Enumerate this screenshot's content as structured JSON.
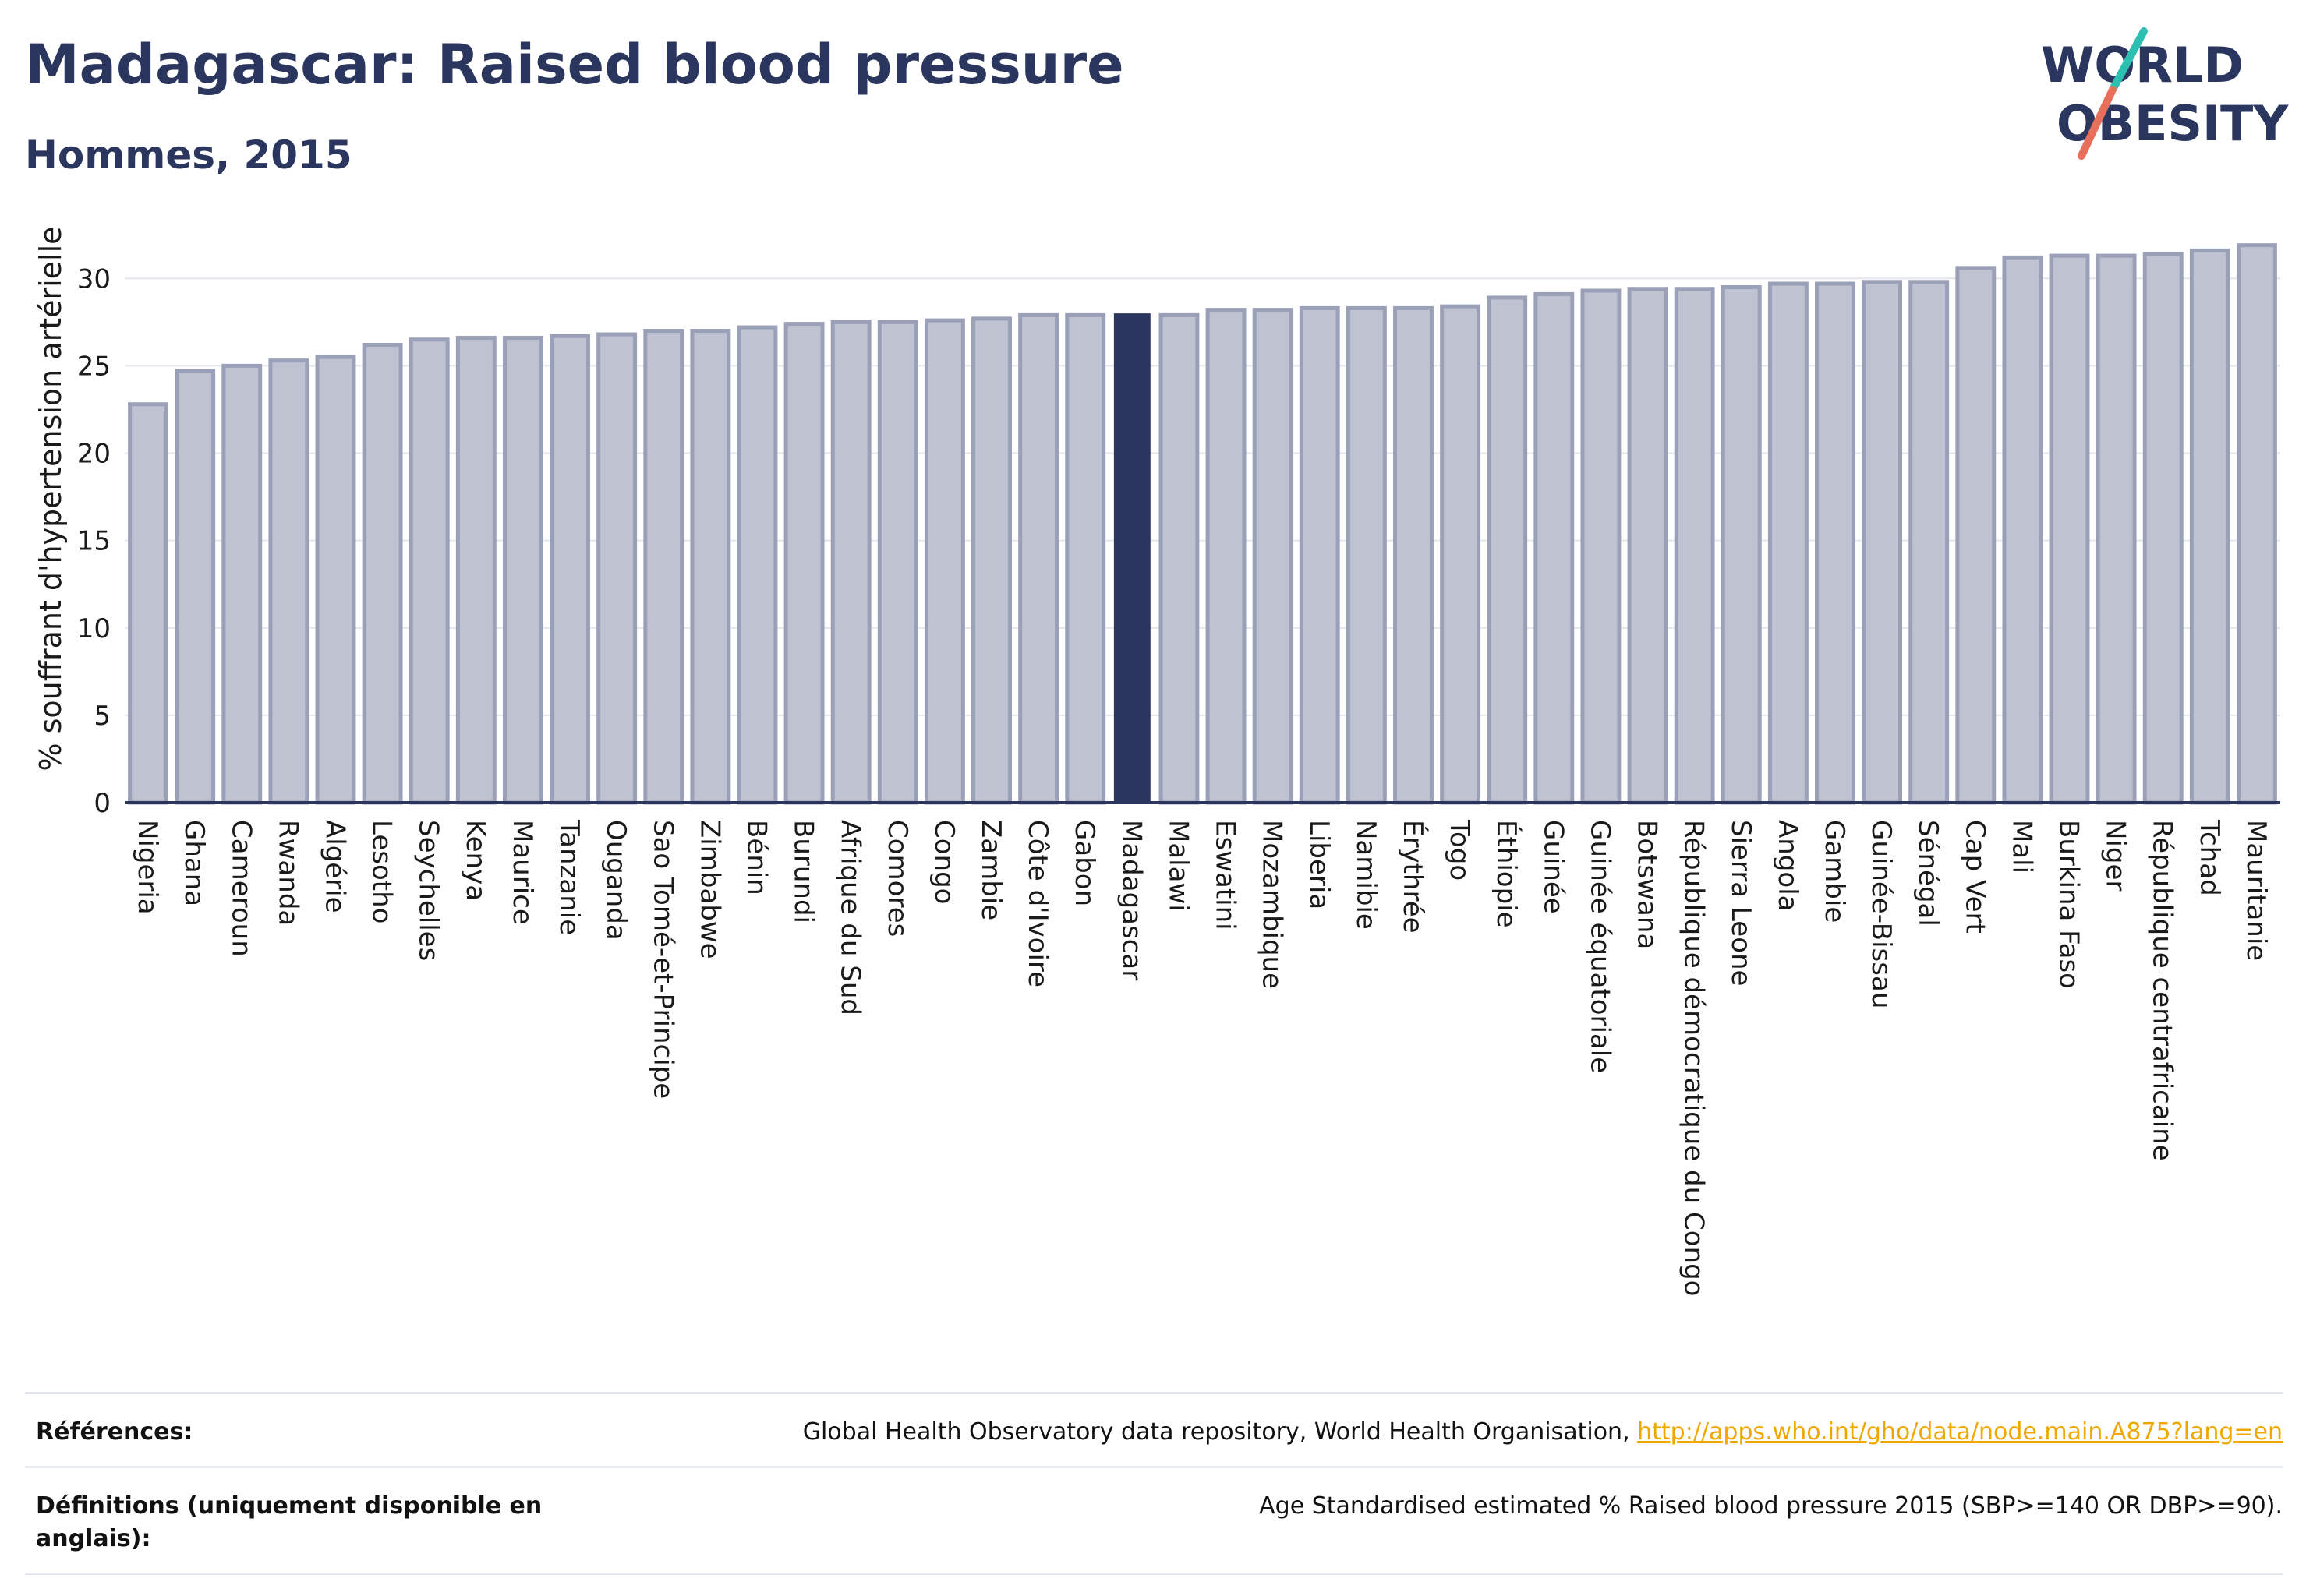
{
  "header": {
    "title": "Madagascar: Raised blood pressure",
    "subtitle": "Hommes, 2015"
  },
  "logo": {
    "line1": "WORLD",
    "line2": "OBESITY"
  },
  "chart_data": {
    "type": "bar",
    "ylabel": "% souffrant d'hypertension artérielle",
    "ylim": [
      0,
      33
    ],
    "yticks": [
      0,
      5,
      10,
      15,
      20,
      25,
      30
    ],
    "grid": true,
    "highlight": "Madagascar",
    "colors": {
      "bar": "#bfc3d1",
      "bar_edge": "#9aa0b8",
      "highlight": "#2b365e"
    },
    "categories": [
      "Nigeria",
      "Ghana",
      "Cameroun",
      "Rwanda",
      "Algérie",
      "Lesotho",
      "Seychelles",
      "Kenya",
      "Maurice",
      "Tanzanie",
      "Ouganda",
      "Sao Tomé-et-Principe",
      "Zimbabwe",
      "Bénin",
      "Burundi",
      "Afrique du Sud",
      "Comores",
      "Congo",
      "Zambie",
      "Côte d'Ivoire",
      "Gabon",
      "Madagascar",
      "Malawi",
      "Eswatini",
      "Mozambique",
      "Liberia",
      "Namibie",
      "Érythrée",
      "Togo",
      "Éthiopie",
      "Guinée",
      "Guinée équatoriale",
      "Botswana",
      "République démocratique du Congo",
      "Sierra Leone",
      "Angola",
      "Gambie",
      "Guinée-Bissau",
      "Sénégal",
      "Cap Vert",
      "Mali",
      "Burkina Faso",
      "Niger",
      "République centrafricaine",
      "Tchad",
      "Mauritanie"
    ],
    "values": [
      22.8,
      24.7,
      25.0,
      25.3,
      25.5,
      26.2,
      26.5,
      26.6,
      26.6,
      26.7,
      26.8,
      27.0,
      27.0,
      27.2,
      27.4,
      27.5,
      27.5,
      27.6,
      27.7,
      27.9,
      27.9,
      28.0,
      27.9,
      28.2,
      28.2,
      28.3,
      28.3,
      28.3,
      28.4,
      28.9,
      29.1,
      29.3,
      29.4,
      29.4,
      29.5,
      29.7,
      29.7,
      29.8,
      29.8,
      30.6,
      31.2,
      31.3,
      31.3,
      31.4,
      31.6,
      31.9
    ]
  },
  "footer": {
    "references_label": "Références:",
    "references_text": "Global Health Observatory data repository, World Health Organisation, ",
    "references_link": "http://apps.who.int/gho/data/node.main.A875?lang=en",
    "definitions_label": "Définitions (uniquement disponible en anglais):",
    "definitions_text": "Age Standardised estimated % Raised blood pressure 2015 (SBP>=140 OR DBP>=90)."
  }
}
